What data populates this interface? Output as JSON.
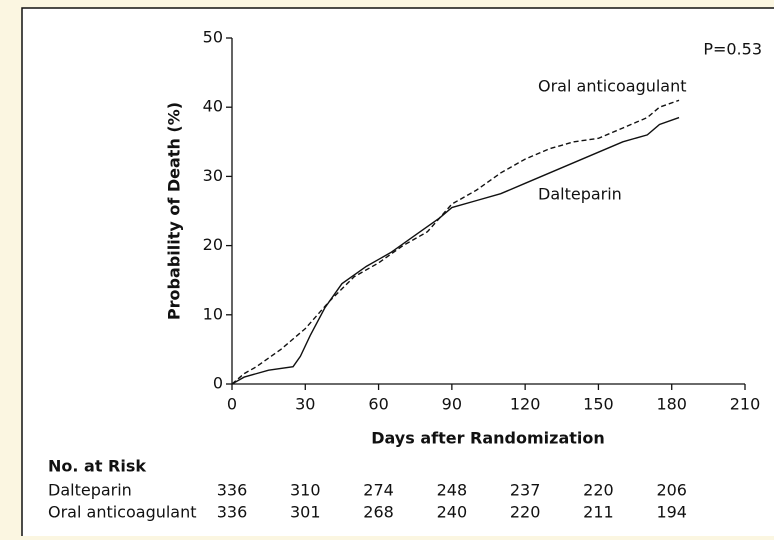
{
  "chart_data": {
    "type": "line",
    "xlabel": "Days after Randomization",
    "ylabel": "Probability of Death (%)",
    "annotation": "P=0.53",
    "xlim": [
      0,
      210
    ],
    "xticks": [
      0,
      30,
      60,
      90,
      120,
      150,
      180,
      210
    ],
    "ylim": [
      0,
      50
    ],
    "yticks": [
      0,
      10,
      20,
      30,
      40,
      50
    ],
    "series": [
      {
        "name": "Dalteparin",
        "color": "#111111",
        "dash": false,
        "x": [
          0,
          5,
          10,
          15,
          25,
          28,
          32,
          38,
          45,
          55,
          65,
          75,
          85,
          90,
          100,
          110,
          120,
          130,
          140,
          150,
          160,
          170,
          175,
          183
        ],
        "values": [
          0,
          1,
          1.5,
          2,
          2.5,
          4,
          7,
          11,
          14.5,
          17,
          19,
          21.5,
          24,
          25.5,
          26.5,
          27.5,
          29,
          30.5,
          32,
          33.5,
          35,
          36,
          37.5,
          38.5
        ]
      },
      {
        "name": "Oral anticoagulant",
        "color": "#111111",
        "dash": true,
        "x": [
          0,
          5,
          10,
          20,
          30,
          40,
          50,
          60,
          70,
          80,
          90,
          100,
          110,
          120,
          130,
          140,
          150,
          160,
          170,
          175,
          183
        ],
        "values": [
          0,
          1.5,
          2.5,
          5,
          8,
          12,
          15.5,
          17.5,
          20,
          22,
          26,
          28,
          30.5,
          32.5,
          34,
          35,
          35.5,
          37,
          38.5,
          40,
          41
        ]
      }
    ],
    "risk_table": {
      "title": "No. at Risk",
      "rows": [
        {
          "label": "Dalteparin",
          "counts": [
            336,
            310,
            274,
            248,
            237,
            220,
            206
          ]
        },
        {
          "label": "Oral anticoagulant",
          "counts": [
            336,
            301,
            268,
            240,
            220,
            211,
            194
          ]
        }
      ]
    }
  }
}
